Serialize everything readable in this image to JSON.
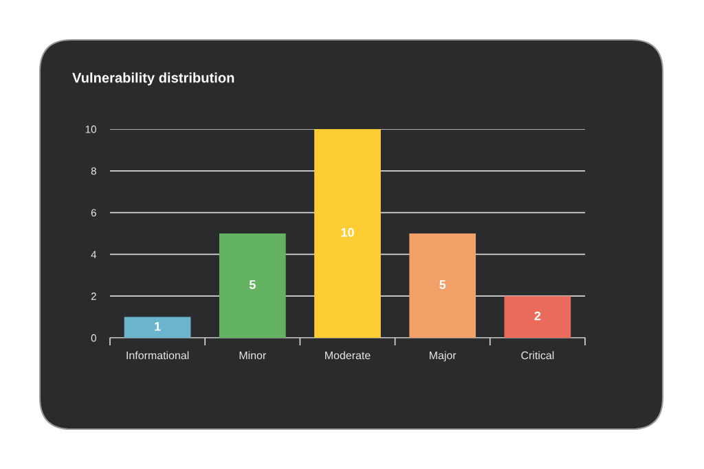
{
  "chart_data": {
    "type": "bar",
    "title": "Vulnerability distribution",
    "categories": [
      "Informational",
      "Minor",
      "Moderate",
      "Major",
      "Critical"
    ],
    "values": [
      1,
      5,
      10,
      5,
      2
    ],
    "colors": [
      "#6bb5cc",
      "#63b363",
      "#fdcd33",
      "#f39f68",
      "#ea6a5c"
    ],
    "ylim": [
      0,
      10
    ],
    "yticks": [
      0,
      2,
      4,
      6,
      8,
      10
    ],
    "grid": "y",
    "data_labels": true
  }
}
